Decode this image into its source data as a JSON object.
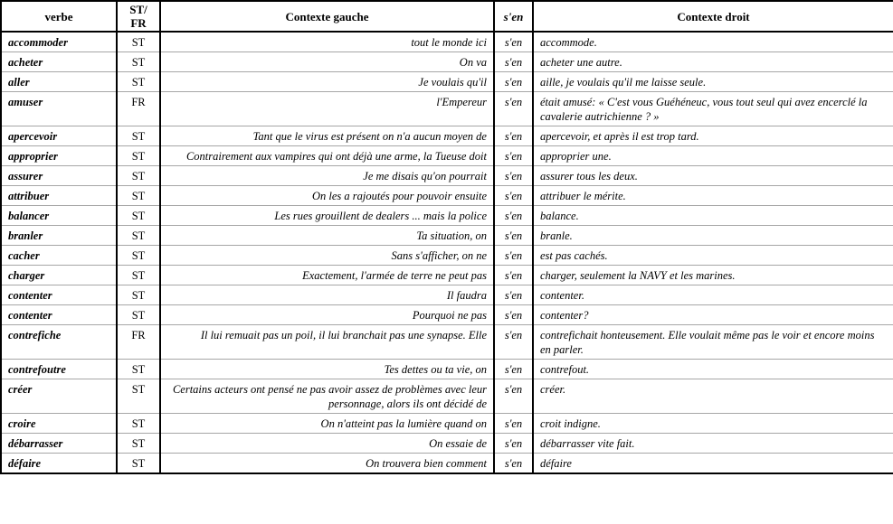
{
  "header": {
    "verbe": "verbe",
    "st_fr": "ST/\nFR",
    "contexte_gauche": "Contexte gauche",
    "sen": "s'en",
    "contexte_droit": "Contexte droit"
  },
  "rows": [
    {
      "verbe": "accommoder",
      "code": "ST",
      "left": "tout le monde ici",
      "sen": "s'en",
      "right": "accommode."
    },
    {
      "verbe": "acheter",
      "code": "ST",
      "left": "On va",
      "sen": "s'en",
      "right": "acheter une autre."
    },
    {
      "verbe": "aller",
      "code": "ST",
      "left": "Je voulais qu'il",
      "sen": "s'en",
      "right": "aille, je voulais qu'il me laisse seule."
    },
    {
      "verbe": "amuser",
      "code": "FR",
      "left": "l'Empereur",
      "sen": "s'en",
      "right": "était amusé: « C'est vous Guéhéneuc, vous tout seul qui avez encerclé la cavalerie autrichienne ? »"
    },
    {
      "verbe": "apercevoir",
      "code": "ST",
      "left": "Tant que le virus est présent on n'a aucun moyen de",
      "sen": "s'en",
      "right": "apercevoir, et après il est trop tard."
    },
    {
      "verbe": "approprier",
      "code": "ST",
      "left": "Contrairement aux vampires qui ont déjà une arme, la Tueuse doit",
      "sen": "s'en",
      "right": "approprier une."
    },
    {
      "verbe": "assurer",
      "code": "ST",
      "left": "Je me disais qu'on pourrait",
      "sen": "s'en",
      "right": "assurer tous les deux."
    },
    {
      "verbe": "attribuer",
      "code": "ST",
      "left": "On les a rajoutés pour pouvoir ensuite",
      "sen": "s'en",
      "right": "attribuer le mérite."
    },
    {
      "verbe": "balancer",
      "code": "ST",
      "left": "Les rues grouillent de dealers ... mais la police",
      "sen": "s'en",
      "right": "balance."
    },
    {
      "verbe": "branler",
      "code": "ST",
      "left": "Ta situation, on",
      "sen": "s'en",
      "right": "branle."
    },
    {
      "verbe": "cacher",
      "code": "ST",
      "left": "Sans s'afficher, on ne",
      "sen": "s'en",
      "right": "est pas cachés."
    },
    {
      "verbe": "charger",
      "code": "ST",
      "left": "Exactement, l'armée de terre ne peut pas",
      "sen": "s'en",
      "right": "charger, seulement la NAVY et les marines."
    },
    {
      "verbe": "contenter",
      "code": "ST",
      "left": "Il faudra",
      "sen": "s'en",
      "right": "contenter."
    },
    {
      "verbe": "contenter",
      "code": "ST",
      "left": "Pourquoi ne pas",
      "sen": "s'en",
      "right": "contenter?"
    },
    {
      "verbe": "contrefiche",
      "code": "FR",
      "left": "Il lui remuait pas un poil, il lui branchait pas une synapse. Elle",
      "sen": "s'en",
      "right": "contrefichait honteusement. Elle voulait même pas le voir et encore moins en parler."
    },
    {
      "verbe": "contrefoutre",
      "code": "ST",
      "left": "Tes dettes ou ta vie, on",
      "sen": "s'en",
      "right": "contrefout."
    },
    {
      "verbe": "créer",
      "code": "ST",
      "left": "Certains acteurs ont pensé ne pas avoir assez de problèmes avec leur personnage, alors ils ont décidé de",
      "sen": "s'en",
      "right": "créer."
    },
    {
      "verbe": "croire",
      "code": "ST",
      "left": "On n'atteint pas la lumière quand on",
      "sen": "s'en",
      "right": "croit indigne."
    },
    {
      "verbe": "débarrasser",
      "code": "ST",
      "left": "On essaie de",
      "sen": "s'en",
      "right": "débarrasser vite fait."
    },
    {
      "verbe": "défaire",
      "code": "ST",
      "left": "On trouvera bien comment",
      "sen": "s'en",
      "right": "défaire"
    }
  ],
  "colors": {
    "border_strong": "#000000",
    "row_separator": "#a6a6a6",
    "background": "#ffffff",
    "text": "#000000"
  }
}
